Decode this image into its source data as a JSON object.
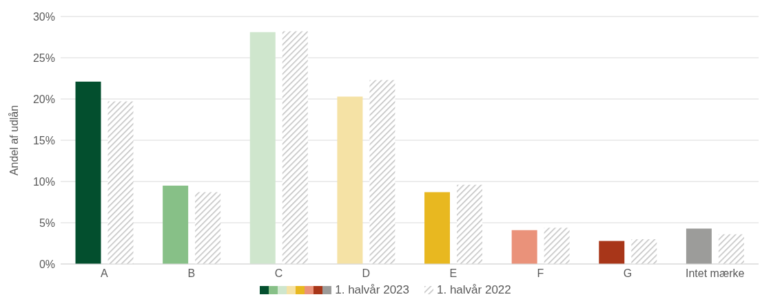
{
  "chart_data": {
    "type": "bar",
    "ylabel": "Andel af udlån",
    "categories": [
      "A",
      "B",
      "C",
      "D",
      "E",
      "F",
      "G",
      "Intet mærke"
    ],
    "series": [
      {
        "name": "1. halvår 2023",
        "colors": [
          "#034f2e",
          "#87c087",
          "#cfe6cd",
          "#f5e2a5",
          "#e8b820",
          "#ea927a",
          "#a83619",
          "#9c9c9a"
        ],
        "values": [
          22.1,
          9.5,
          28.1,
          20.3,
          8.7,
          4.1,
          2.8,
          4.3
        ]
      },
      {
        "name": "1. halvår 2022",
        "color": "#bfbfbf",
        "values": [
          19.7,
          8.7,
          28.2,
          22.3,
          9.6,
          4.4,
          3.0,
          3.6
        ]
      }
    ],
    "ylim": [
      0,
      30
    ],
    "yticks": [
      {
        "value": 0,
        "label": "0%"
      },
      {
        "value": 5,
        "label": "5%"
      },
      {
        "value": 10,
        "label": "10%"
      },
      {
        "value": 15,
        "label": "15%"
      },
      {
        "value": 20,
        "label": "20%"
      },
      {
        "value": 25,
        "label": "25%"
      },
      {
        "value": 30,
        "label": "30%"
      }
    ],
    "grid": "y",
    "legend": "bottom"
  }
}
